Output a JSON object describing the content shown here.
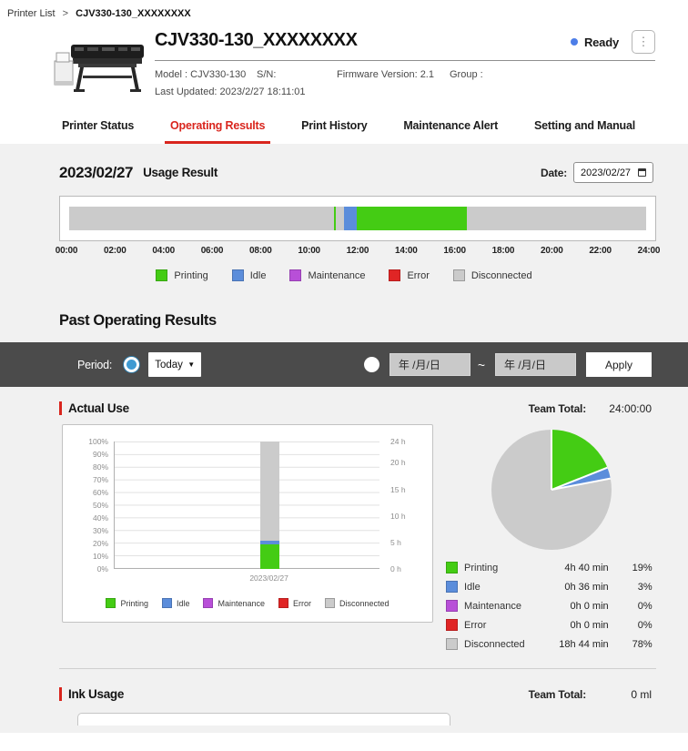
{
  "breadcrumb": {
    "parent": "Printer List",
    "separator": ">",
    "current": "CJV330-130_XXXXXXXX"
  },
  "header": {
    "title": "CJV330-130_XXXXXXXX",
    "status": {
      "label": "Ready",
      "dot_color": "#4d7ee8"
    },
    "menu_icon": "vertical-dots",
    "model_label": "Model : CJV330-130",
    "serial_label": "S/N:",
    "firmware_label": "Firmware Version: 2.1",
    "group_label": "Group :",
    "last_updated": "Last Updated: 2023/2/27 18:11:01"
  },
  "tabs": [
    {
      "label": "Printer Status",
      "active": false
    },
    {
      "label": "Operating Results",
      "active": true
    },
    {
      "label": "Print History",
      "active": false
    },
    {
      "label": "Maintenance Alert",
      "active": false
    },
    {
      "label": "Setting and Manual",
      "active": false
    }
  ],
  "usage_result": {
    "date_heading": "2023/02/27",
    "title": "Usage Result",
    "date_label": "Date:",
    "date_value": "2023/02/27"
  },
  "legend": [
    "Printing",
    "Idle",
    "Maintenance",
    "Error",
    "Disconnected"
  ],
  "colors": {
    "printing": "#44cc14",
    "idle": "#5b8ddb",
    "maintenance": "#b84fd8",
    "error": "#e02525",
    "disconnected": "#cbcbcb",
    "accent": "#d9251d",
    "ready_dot": "#4d7ee8"
  },
  "past_results": {
    "title": "Past Operating Results",
    "period_label": "Period:",
    "period_value": "Today",
    "range_from_placeholder": "年 /月/日",
    "range_separator": "~",
    "range_to_placeholder": "年 /月/日",
    "apply_label": "Apply"
  },
  "actual_use": {
    "title": "Actual Use",
    "team_total_label": "Team Total:",
    "team_total_value": "24:00:00",
    "rows": [
      {
        "label": "Printing",
        "time": "4h 40 min",
        "pct": "19%"
      },
      {
        "label": "Idle",
        "time": "0h 36 min",
        "pct": "3%"
      },
      {
        "label": "Maintenance",
        "time": "0h 0 min",
        "pct": "0%"
      },
      {
        "label": "Error",
        "time": "0h 0 min",
        "pct": "0%"
      },
      {
        "label": "Disconnected",
        "time": "18h 44 min",
        "pct": "78%"
      }
    ]
  },
  "ink_usage": {
    "title": "Ink Usage",
    "team_total_label": "Team Total:",
    "team_total_value": "0 ml"
  },
  "chart_data": [
    {
      "type": "timeline",
      "title": "2023/02/27 Usage Result",
      "x_range_hours": [
        0,
        24
      ],
      "ticks": [
        "00:00",
        "02:00",
        "04:00",
        "06:00",
        "08:00",
        "10:00",
        "12:00",
        "14:00",
        "16:00",
        "18:00",
        "20:00",
        "22:00",
        "24:00"
      ],
      "segments": [
        {
          "state": "Disconnected",
          "start": 0,
          "end": 11.0
        },
        {
          "state": "Printing",
          "start": 11.0,
          "end": 11.1
        },
        {
          "state": "Disconnected",
          "start": 11.1,
          "end": 11.42
        },
        {
          "state": "Idle",
          "start": 11.42,
          "end": 11.95
        },
        {
          "state": "Printing",
          "start": 11.95,
          "end": 16.55
        },
        {
          "state": "Disconnected",
          "start": 16.55,
          "end": 24
        }
      ]
    },
    {
      "type": "bar",
      "stacked": true,
      "categories": [
        "2023/02/27"
      ],
      "series": [
        {
          "name": "Printing",
          "values": [
            19
          ]
        },
        {
          "name": "Idle",
          "values": [
            3
          ]
        },
        {
          "name": "Maintenance",
          "values": [
            0
          ]
        },
        {
          "name": "Error",
          "values": [
            0
          ]
        },
        {
          "name": "Disconnected",
          "values": [
            78
          ]
        }
      ],
      "ylim": [
        0,
        100
      ],
      "left_ticks": [
        "100%",
        "90%",
        "80%",
        "70%",
        "60%",
        "50%",
        "40%",
        "30%",
        "20%",
        "10%",
        "0%"
      ],
      "right_ticks": [
        {
          "label": "24 h",
          "hours": 24
        },
        {
          "label": "20 h",
          "hours": 20
        },
        {
          "label": "15 h",
          "hours": 15
        },
        {
          "label": "10 h",
          "hours": 10
        },
        {
          "label": "5 h",
          "hours": 5
        },
        {
          "label": "0 h",
          "hours": 0
        }
      ],
      "grid": true,
      "legend_position": "bottom"
    },
    {
      "type": "pie",
      "slices": [
        {
          "label": "Printing",
          "pct": 19
        },
        {
          "label": "Idle",
          "pct": 3
        },
        {
          "label": "Maintenance",
          "pct": 0
        },
        {
          "label": "Error",
          "pct": 0
        },
        {
          "label": "Disconnected",
          "pct": 78
        }
      ],
      "start_angle": "top",
      "direction": "clockwise"
    }
  ]
}
